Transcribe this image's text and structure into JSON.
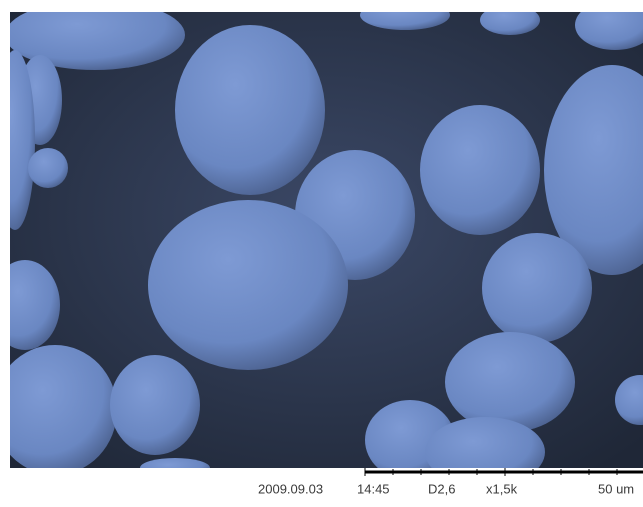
{
  "caption": {
    "date": "2009.09.03",
    "time": "14:45",
    "detector": "D2,6",
    "magnification": "x1,5k",
    "scale": "50 um"
  }
}
